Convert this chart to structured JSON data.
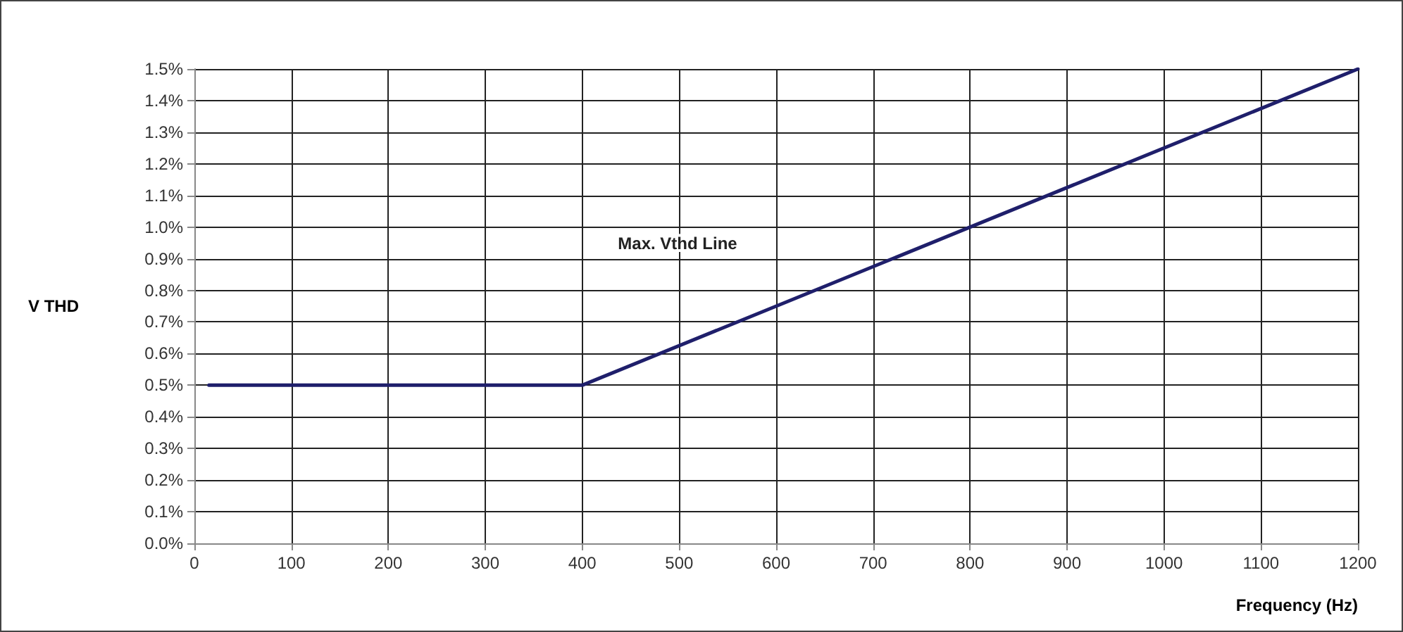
{
  "chart_data": {
    "type": "line",
    "xlabel": "Frequency (Hz)",
    "ylabel": "V THD",
    "x": [
      15,
      400,
      1200
    ],
    "series": [
      {
        "name": "Max. Vthd Line",
        "color": "#1f1f6b",
        "values": [
          0.5,
          0.5,
          1.5
        ]
      }
    ],
    "xlim": [
      0,
      1200
    ],
    "xticks": [
      0,
      100,
      200,
      300,
      400,
      500,
      600,
      700,
      800,
      900,
      1000,
      1100,
      1200
    ],
    "ylim": [
      0,
      1.5
    ],
    "yticks": [
      {
        "value": 0,
        "label": "0.0%"
      },
      {
        "value": 0.1,
        "label": "0.1%"
      },
      {
        "value": 0.2,
        "label": "0.2%"
      },
      {
        "value": 0.3,
        "label": "0.3%"
      },
      {
        "value": 0.4,
        "label": "0.4%"
      },
      {
        "value": 0.5,
        "label": "0.5%"
      },
      {
        "value": 0.6,
        "label": "0.6%"
      },
      {
        "value": 0.7,
        "label": "0.7%"
      },
      {
        "value": 0.8,
        "label": "0.8%"
      },
      {
        "value": 0.9,
        "label": "0.9%"
      },
      {
        "value": 1.0,
        "label": "1.0%"
      },
      {
        "value": 1.1,
        "label": "1.1%"
      },
      {
        "value": 1.2,
        "label": "1.2%"
      },
      {
        "value": 1.3,
        "label": "1.3%"
      },
      {
        "value": 1.4,
        "label": "1.4%"
      },
      {
        "value": 1.5,
        "label": "1.5%"
      }
    ],
    "grid": true,
    "marker": "none",
    "line_style": "solid",
    "legend": false
  }
}
